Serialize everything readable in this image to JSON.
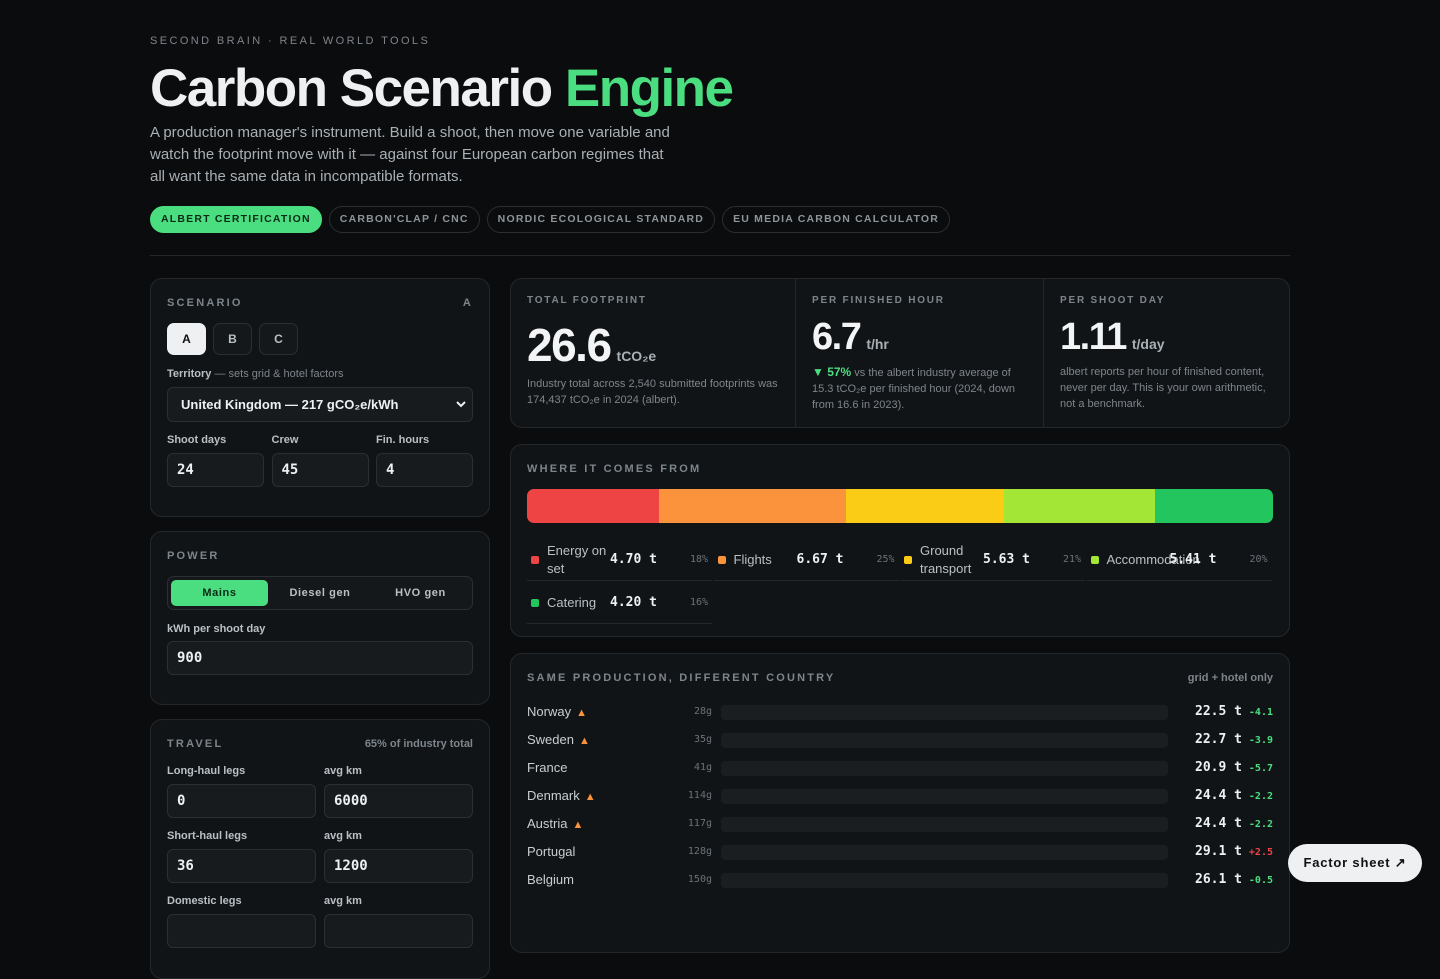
{
  "header": {
    "eyebrow": "SECOND BRAIN · REAL WORLD TOOLS",
    "title_main": "Carbon Scenario",
    "title_accent": "Engine",
    "description": "A production manager's instrument. Build a shoot, then move one variable and watch the footprint move with it — against four European carbon regimes that all want the same data in incompatible formats.",
    "tabs": [
      "ALBERT CERTIFICATION",
      "CARBON'CLAP / CNC",
      "NORDIC ECOLOGICAL STANDARD",
      "EU MEDIA CARBON CALCULATOR"
    ]
  },
  "scenario": {
    "heading": "SCENARIO",
    "badge": "A",
    "buttons": [
      "A",
      "B",
      "C"
    ],
    "territory_label": "Territory",
    "territory_hint": "— sets grid & hotel factors",
    "territory_value": "United Kingdom — 217 gCO₂e/kWh",
    "fields": [
      {
        "label": "Shoot days",
        "value": "24"
      },
      {
        "label": "Crew",
        "value": "45"
      },
      {
        "label": "Fin. hours",
        "value": "4"
      }
    ]
  },
  "power": {
    "heading": "POWER",
    "options": [
      "Mains",
      "Diesel gen",
      "HVO gen"
    ],
    "field_label": "kWh per shoot day",
    "field_value": "900"
  },
  "travel": {
    "heading": "TRAVEL",
    "note": "65% of industry total",
    "fields": [
      {
        "label": "Long-haul legs",
        "value": "0"
      },
      {
        "label": "avg km",
        "value": "6000"
      },
      {
        "label": "Short-haul legs",
        "value": "36"
      },
      {
        "label": "avg km",
        "value": "1200"
      },
      {
        "label": "Domestic legs",
        "value": ""
      },
      {
        "label": "avg km",
        "value": ""
      }
    ]
  },
  "stats": [
    {
      "label": "TOTAL FOOTPRINT",
      "value": "26.6",
      "unit": "tCO₂e",
      "note": "Industry total across 2,540 submitted footprints was 174,437 tCO₂e in 2024 (albert)."
    },
    {
      "label": "PER FINISHED HOUR",
      "value": "6.7",
      "unit": "t/hr",
      "delta": "▼ 57%",
      "note": "vs the albert industry average of 15.3 tCO₂e per finished hour (2024, down from 16.6 in 2023)."
    },
    {
      "label": "PER SHOOT DAY",
      "value": "1.11",
      "unit": "t/day",
      "note": "albert reports per hour of finished content, never per day. This is your own arithmetic, not a benchmark."
    }
  ],
  "breakdown": {
    "heading": "WHERE IT COMES FROM",
    "segments": [
      {
        "name": "Energy on set",
        "value": 4.7,
        "value_label": "4.70 t",
        "share": 18,
        "share_label": "18%",
        "color": "#ef4444"
      },
      {
        "name": "Flights",
        "value": 6.67,
        "value_label": "6.67 t",
        "share": 25,
        "share_label": "25%",
        "color": "#fb923c"
      },
      {
        "name": "Ground transport",
        "value": 5.63,
        "value_label": "5.63 t",
        "share": 21,
        "share_label": "21%",
        "color": "#facc15"
      },
      {
        "name": "Accommodation",
        "value": 5.41,
        "value_label": "5.41 t",
        "share": 20,
        "share_label": "20%",
        "color": "#a3e635"
      },
      {
        "name": "Catering",
        "value": 4.2,
        "value_label": "4.20 t",
        "share": 16,
        "share_label": "16%",
        "color": "#22c55e"
      }
    ]
  },
  "countries": {
    "heading": "SAME PRODUCTION, DIFFERENT COUNTRY",
    "note": "grid + hotel only",
    "rows": [
      {
        "name": "Norway",
        "marker": "▲",
        "intensity": "28g",
        "total": "22.5 t",
        "delta": "-4.1"
      },
      {
        "name": "Sweden",
        "marker": "▲",
        "intensity": "35g",
        "total": "22.7 t",
        "delta": "-3.9"
      },
      {
        "name": "France",
        "intensity": "41g",
        "total": "20.9 t",
        "delta": "-5.7"
      },
      {
        "name": "Denmark",
        "marker": "▲",
        "intensity": "114g",
        "total": "24.4 t",
        "delta": "-2.2"
      },
      {
        "name": "Austria",
        "marker": "▲",
        "intensity": "117g",
        "total": "24.4 t",
        "delta": "-2.2"
      },
      {
        "name": "Portugal",
        "intensity": "128g",
        "total": "29.1 t",
        "delta": "+2.5"
      },
      {
        "name": "Belgium",
        "intensity": "150g",
        "total": "26.1 t",
        "delta": "-0.5"
      }
    ]
  },
  "factor_button": "Factor sheet ↗"
}
